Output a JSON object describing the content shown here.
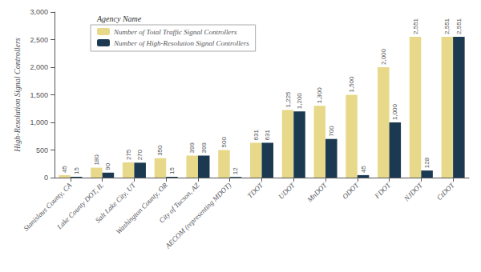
{
  "chart_data": {
    "type": "bar",
    "ylabel": "High-Resolution Signal Controllers",
    "legend_title": "Agency Name",
    "categories": [
      "Stanislaus County, CA",
      "Lake County DOT, IL",
      "Salt Lake City, UT",
      "Washington County, OR",
      "City of Tucson, AZ",
      "AECOM (representing MDOT)",
      "TDOT",
      "UDOT",
      "MnDOT",
      "ODOT",
      "FDOT",
      "NJDOT",
      "CtDOT"
    ],
    "series": [
      {
        "name": "Number of Total Traffic Signal Controllers",
        "color": "#E8D98A",
        "values": [
          45,
          180,
          275,
          350,
          399,
          500,
          631,
          1225,
          1300,
          1500,
          2000,
          2551,
          2551
        ],
        "value_labels": [
          "45",
          "180",
          "275",
          "350",
          "399",
          "500",
          "631",
          "1,225",
          "1,300",
          "1,500",
          "2,000",
          "2,551",
          "2,551"
        ]
      },
      {
        "name": "Number of High-Resolution Signal Controllers",
        "color": "#1B3A52",
        "values": [
          15,
          90,
          270,
          15,
          399,
          12,
          631,
          1200,
          700,
          45,
          1000,
          128,
          2551
        ],
        "value_labels": [
          "15",
          "90",
          "270",
          "15",
          "399",
          "12",
          "631",
          "1,200",
          "700",
          "45",
          "1,000",
          "128",
          "2,551"
        ]
      }
    ],
    "ylim": [
      0,
      3000
    ],
    "yticks": [
      0,
      500,
      {
        "value": 1000,
        "label": "1,000"
      },
      {
        "value": 1500,
        "label": "1,500"
      },
      {
        "value": 2000,
        "label": "2,000"
      },
      {
        "value": 2500,
        "label": "2,500"
      },
      {
        "value": 3000,
        "label": "3,000"
      }
    ],
    "grid": false,
    "legend": "upper left",
    "data_labels": true
  }
}
